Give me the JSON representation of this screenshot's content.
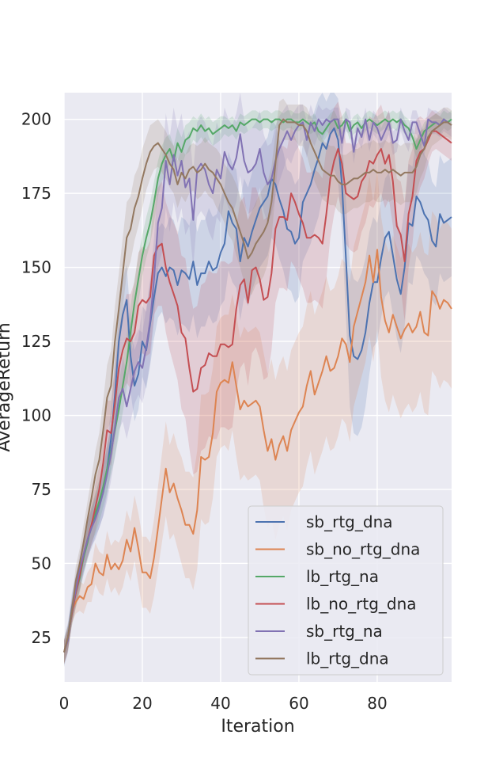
{
  "chart_data": {
    "type": "line",
    "title": "",
    "xlabel": "Iteration",
    "ylabel": "AverageReturn",
    "xlim": [
      0,
      99
    ],
    "ylim": [
      10,
      209
    ],
    "xticks": [
      0,
      20,
      40,
      60,
      80
    ],
    "yticks": [
      25,
      50,
      75,
      100,
      125,
      150,
      175,
      200
    ],
    "grid": true,
    "legend_position": "lower-right",
    "x": [
      0,
      1,
      2,
      3,
      4,
      5,
      6,
      7,
      8,
      9,
      10,
      11,
      12,
      13,
      14,
      15,
      16,
      17,
      18,
      19,
      20,
      21,
      22,
      23,
      24,
      25,
      26,
      27,
      28,
      29,
      30,
      31,
      32,
      33,
      34,
      35,
      36,
      37,
      38,
      39,
      40,
      41,
      42,
      43,
      44,
      45,
      46,
      47,
      48,
      49,
      50,
      51,
      52,
      53,
      54,
      55,
      56,
      57,
      58,
      59,
      60,
      61,
      62,
      63,
      64,
      65,
      66,
      67,
      68,
      69,
      70,
      71,
      72,
      73,
      74,
      75,
      76,
      77,
      78,
      79,
      80,
      81,
      82,
      83,
      84,
      85,
      86,
      87,
      88,
      89,
      90,
      91,
      92,
      93,
      94,
      95,
      96,
      97,
      98,
      99
    ],
    "series": [
      {
        "name": "sb_rtg_dna",
        "color": "#4c72b0",
        "values": [
          20,
          25,
          35,
          41,
          46,
          52,
          58,
          62,
          66,
          70,
          74,
          82,
          92,
          107,
          125,
          134,
          139,
          120,
          110,
          114,
          125,
          122,
          131,
          140,
          148,
          150,
          147,
          150,
          149,
          144,
          149,
          148,
          146,
          152,
          144,
          148,
          148,
          152,
          149,
          150,
          155,
          158,
          169,
          165,
          163,
          152,
          160,
          157,
          162,
          166,
          170,
          172,
          174,
          180,
          178,
          173,
          169,
          163,
          162,
          158,
          160,
          172,
          175,
          178,
          183,
          187,
          192,
          190,
          195,
          197,
          193,
          178,
          153,
          127,
          120,
          119,
          122,
          128,
          138,
          145,
          145,
          153,
          160,
          162,
          154,
          146,
          141,
          150,
          165,
          164,
          174,
          172,
          168,
          166,
          159,
          157,
          168,
          165,
          166,
          167
        ],
        "band": [
          5,
          5,
          5,
          5,
          5,
          6,
          6,
          7,
          7,
          8,
          8,
          9,
          10,
          11,
          12,
          12,
          12,
          12,
          12,
          12,
          12,
          13,
          14,
          14,
          15,
          15,
          16,
          17,
          17,
          17,
          18,
          18,
          18,
          18,
          18,
          18,
          18,
          18,
          18,
          18,
          18,
          19,
          20,
          20,
          20,
          20,
          20,
          20,
          20,
          20,
          20,
          20,
          20,
          20,
          20,
          20,
          20,
          20,
          20,
          20,
          20,
          20,
          20,
          20,
          20,
          20,
          18,
          16,
          15,
          14,
          14,
          16,
          20,
          24,
          26,
          26,
          26,
          25,
          24,
          22,
          20,
          20,
          20,
          20,
          20,
          20,
          20,
          20,
          20,
          20,
          20,
          20,
          20,
          20,
          20,
          20,
          20,
          20,
          20,
          20
        ]
      },
      {
        "name": "sb_no_rtg_dna",
        "color": "#dd8452",
        "values": [
          20,
          24,
          34,
          37,
          39,
          38,
          42,
          43,
          50,
          47,
          46,
          53,
          48,
          50,
          48,
          51,
          58,
          54,
          62,
          55,
          47,
          47,
          45,
          52,
          62,
          72,
          82,
          74,
          77,
          72,
          68,
          63,
          63,
          60,
          68,
          86,
          85,
          86,
          94,
          108,
          111,
          112,
          111,
          118,
          110,
          102,
          105,
          103,
          104,
          105,
          103,
          95,
          88,
          92,
          85,
          90,
          93,
          88,
          95,
          98,
          101,
          103,
          110,
          115,
          107,
          111,
          115,
          120,
          115,
          116,
          120,
          126,
          124,
          118,
          130,
          135,
          140,
          145,
          154,
          145,
          156,
          140,
          132,
          128,
          134,
          130,
          126,
          129,
          131,
          128,
          130,
          135,
          128,
          127,
          142,
          140,
          136,
          139,
          138,
          136
        ],
        "band": [
          4,
          4,
          4,
          4,
          5,
          5,
          5,
          6,
          7,
          7,
          7,
          8,
          8,
          8,
          9,
          9,
          10,
          10,
          11,
          12,
          12,
          12,
          12,
          13,
          14,
          15,
          16,
          16,
          17,
          17,
          18,
          18,
          18,
          19,
          20,
          21,
          22,
          22,
          22,
          22,
          22,
          22,
          23,
          23,
          24,
          24,
          25,
          25,
          25,
          25,
          25,
          26,
          26,
          27,
          27,
          27,
          27,
          27,
          27,
          27,
          27,
          27,
          27,
          27,
          27,
          27,
          27,
          27,
          27,
          27,
          27,
          27,
          27,
          27,
          27,
          27,
          27,
          27,
          27,
          27,
          27,
          27,
          27,
          27,
          27,
          27,
          27,
          27,
          27,
          27,
          27,
          27,
          27,
          27,
          27,
          27,
          27,
          27,
          27,
          27
        ]
      },
      {
        "name": "lb_rtg_na",
        "color": "#55a868",
        "values": [
          20,
          25,
          33,
          40,
          45,
          52,
          57,
          63,
          67,
          71,
          76,
          82,
          88,
          95,
          102,
          110,
          118,
          128,
          138,
          146,
          154,
          160,
          165,
          172,
          180,
          185,
          188,
          190,
          186,
          192,
          189,
          193,
          194,
          197,
          196,
          198,
          196,
          197,
          195,
          196,
          197,
          198,
          197,
          198,
          196,
          199,
          198,
          199,
          200,
          200,
          199,
          200,
          200,
          199,
          200,
          200,
          199,
          200,
          200,
          199,
          199,
          200,
          199,
          198,
          199,
          196,
          195,
          197,
          199,
          200,
          197,
          198,
          200,
          196,
          198,
          199,
          197,
          199,
          200,
          199,
          198,
          199,
          200,
          199,
          200,
          199,
          200,
          198,
          197,
          194,
          190,
          193,
          196,
          197,
          198,
          199,
          198,
          200,
          199,
          200
        ],
        "band": [
          4,
          4,
          4,
          5,
          5,
          5,
          6,
          6,
          7,
          7,
          7,
          8,
          8,
          9,
          9,
          9,
          9,
          9,
          8,
          8,
          7,
          7,
          7,
          7,
          6,
          6,
          6,
          5,
          5,
          5,
          5,
          5,
          5,
          4,
          4,
          4,
          4,
          4,
          4,
          4,
          4,
          3,
          3,
          3,
          3,
          3,
          3,
          3,
          3,
          3,
          3,
          3,
          3,
          3,
          3,
          3,
          3,
          3,
          3,
          3,
          3,
          3,
          3,
          3,
          3,
          3,
          3,
          3,
          3,
          3,
          3,
          3,
          3,
          3,
          3,
          3,
          3,
          3,
          3,
          3,
          3,
          3,
          3,
          3,
          3,
          3,
          3,
          3,
          3,
          3,
          3,
          3,
          3,
          3,
          3,
          3,
          3,
          3,
          3,
          3
        ]
      },
      {
        "name": "lb_no_rtg_dna",
        "color": "#c44e52",
        "values": [
          20,
          25,
          33,
          40,
          46,
          53,
          58,
          63,
          69,
          75,
          84,
          95,
          94,
          104,
          116,
          122,
          126,
          125,
          128,
          137,
          139,
          138,
          140,
          154,
          157,
          158,
          150,
          145,
          141,
          137,
          128,
          126,
          116,
          108,
          109,
          116,
          117,
          121,
          120,
          120,
          124,
          124,
          123,
          124,
          136,
          144,
          146,
          138,
          149,
          150,
          146,
          139,
          140,
          148,
          163,
          167,
          167,
          166,
          175,
          172,
          168,
          165,
          160,
          160,
          161,
          160,
          158,
          168,
          180,
          186,
          190,
          185,
          175,
          174,
          173,
          174,
          179,
          181,
          186,
          185,
          188,
          190,
          185,
          188,
          179,
          164,
          161,
          152,
          168,
          174,
          186,
          189,
          190,
          193,
          196,
          196,
          195,
          194,
          193,
          192
        ],
        "band": [
          4,
          4,
          4,
          5,
          5,
          5,
          6,
          7,
          8,
          8,
          9,
          10,
          11,
          12,
          13,
          14,
          15,
          16,
          17,
          18,
          18,
          18,
          19,
          20,
          20,
          21,
          22,
          23,
          24,
          25,
          26,
          27,
          27,
          28,
          28,
          28,
          28,
          28,
          28,
          28,
          28,
          28,
          28,
          28,
          28,
          28,
          28,
          28,
          28,
          27,
          27,
          27,
          27,
          26,
          25,
          24,
          24,
          24,
          23,
          22,
          22,
          22,
          22,
          22,
          22,
          22,
          22,
          22,
          20,
          18,
          16,
          16,
          17,
          18,
          18,
          18,
          17,
          16,
          15,
          15,
          15,
          15,
          15,
          15,
          15,
          16,
          18,
          20,
          18,
          16,
          14,
          12,
          10,
          8,
          7,
          6,
          6,
          6,
          6,
          6
        ]
      },
      {
        "name": "sb_rtg_na",
        "color": "#8172b3",
        "values": [
          20,
          24,
          34,
          41,
          48,
          53,
          58,
          62,
          65,
          69,
          74,
          80,
          87,
          96,
          106,
          109,
          103,
          109,
          115,
          118,
          116,
          123,
          132,
          146,
          165,
          170,
          186,
          178,
          188,
          181,
          186,
          177,
          180,
          166,
          183,
          185,
          183,
          178,
          175,
          183,
          180,
          189,
          185,
          183,
          187,
          195,
          186,
          182,
          183,
          185,
          190,
          182,
          178,
          180,
          186,
          190,
          193,
          196,
          193,
          196,
          198,
          199,
          193,
          199,
          196,
          200,
          198,
          200,
          199,
          200,
          200,
          192,
          200,
          199,
          189,
          197,
          194,
          200,
          193,
          199,
          197,
          193,
          196,
          199,
          192,
          193,
          200,
          196,
          193,
          199,
          199,
          195,
          191,
          200,
          199,
          199,
          198,
          200,
          199,
          198
        ],
        "band": [
          4,
          4,
          4,
          5,
          5,
          6,
          6,
          6,
          7,
          7,
          8,
          9,
          9,
          10,
          11,
          11,
          11,
          11,
          11,
          11,
          12,
          13,
          14,
          14,
          15,
          15,
          16,
          16,
          16,
          16,
          16,
          16,
          16,
          16,
          16,
          16,
          16,
          16,
          16,
          16,
          15,
          15,
          15,
          15,
          15,
          14,
          14,
          14,
          14,
          14,
          13,
          13,
          13,
          12,
          12,
          11,
          10,
          9,
          8,
          7,
          7,
          6,
          6,
          6,
          5,
          5,
          5,
          4,
          4,
          4,
          4,
          4,
          4,
          4,
          4,
          4,
          4,
          4,
          4,
          4,
          4,
          4,
          4,
          4,
          4,
          4,
          4,
          4,
          4,
          4,
          4,
          4,
          4,
          4,
          4,
          4,
          4,
          4,
          4,
          4
        ]
      },
      {
        "name": "lb_rtg_dna",
        "color": "#937860",
        "values": [
          20,
          25,
          34,
          44,
          50,
          57,
          65,
          72,
          80,
          85,
          95,
          106,
          110,
          125,
          136,
          148,
          160,
          163,
          170,
          174,
          180,
          185,
          189,
          191,
          192,
          190,
          188,
          185,
          183,
          178,
          182,
          180,
          183,
          184,
          182,
          183,
          185,
          183,
          182,
          180,
          178,
          175,
          172,
          170,
          166,
          162,
          158,
          153,
          155,
          158,
          160,
          162,
          165,
          172,
          185,
          198,
          200,
          199,
          199,
          199,
          198,
          198,
          196,
          192,
          189,
          186,
          183,
          182,
          181,
          181,
          179,
          178,
          178,
          179,
          180,
          180,
          181,
          182,
          182,
          183,
          182,
          182,
          183,
          182,
          183,
          182,
          181,
          182,
          182,
          182,
          184,
          188,
          190,
          194,
          196,
          197,
          198,
          199,
          199,
          198
        ],
        "band": [
          4,
          4,
          4,
          5,
          5,
          6,
          6,
          7,
          8,
          9,
          10,
          11,
          12,
          12,
          12,
          12,
          12,
          11,
          11,
          10,
          10,
          9,
          9,
          8,
          8,
          8,
          8,
          8,
          8,
          8,
          8,
          8,
          8,
          8,
          9,
          9,
          9,
          9,
          9,
          10,
          10,
          10,
          11,
          11,
          12,
          12,
          13,
          13,
          14,
          14,
          15,
          15,
          14,
          12,
          10,
          8,
          7,
          6,
          6,
          6,
          7,
          7,
          8,
          9,
          10,
          10,
          10,
          10,
          10,
          10,
          10,
          10,
          10,
          10,
          10,
          10,
          10,
          10,
          10,
          10,
          10,
          10,
          10,
          10,
          10,
          10,
          10,
          10,
          10,
          10,
          9,
          8,
          7,
          6,
          5,
          5,
          5,
          5,
          5,
          5
        ]
      }
    ]
  }
}
